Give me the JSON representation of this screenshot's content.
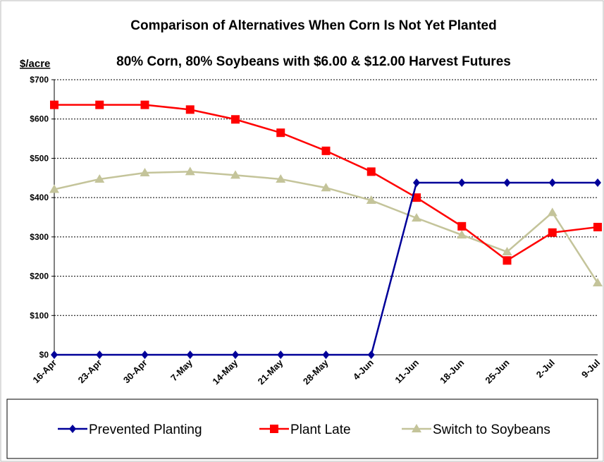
{
  "chart_data": {
    "type": "line",
    "title": "Comparison of Alternatives When Corn Is Not Yet Planted",
    "subtitle": "80% Corn, 80% Soybeans with $6.00 & $12.00 Harvest Futures",
    "y_label": "$/acre",
    "categories": [
      "16-Apr",
      "23-Apr",
      "30-Apr",
      "7-May",
      "14-May",
      "21-May",
      "28-May",
      "4-Jun",
      "11-Jun",
      "18-Jun",
      "25-Jun",
      "2-Jul",
      "9-Jul"
    ],
    "series": [
      {
        "name": "Prevented Planting",
        "color": "#000099",
        "marker": "diamond",
        "values": [
          0,
          0,
          0,
          0,
          0,
          0,
          0,
          0,
          438,
          438,
          438,
          438,
          438
        ]
      },
      {
        "name": "Plant Late",
        "color": "#ff0000",
        "marker": "square",
        "values": [
          636,
          636,
          636,
          624,
          599,
          565,
          519,
          466,
          400,
          327,
          240,
          311,
          325
        ]
      },
      {
        "name": "Switch to Soybeans",
        "color": "#c4c49a",
        "marker": "triangle",
        "values": [
          421,
          447,
          463,
          466,
          457,
          447,
          425,
          393,
          348,
          305,
          262,
          362,
          183
        ]
      }
    ],
    "ylim": [
      0,
      700
    ],
    "yticks": [
      {
        "value": 0,
        "label": "$0"
      },
      {
        "value": 100,
        "label": "$100"
      },
      {
        "value": 200,
        "label": "$200"
      },
      {
        "value": 300,
        "label": "$300"
      },
      {
        "value": 400,
        "label": "$400"
      },
      {
        "value": 500,
        "label": "$500"
      },
      {
        "value": 600,
        "label": "$600"
      },
      {
        "value": 700,
        "label": "$700"
      }
    ],
    "grid": true,
    "legend": "bottom"
  }
}
